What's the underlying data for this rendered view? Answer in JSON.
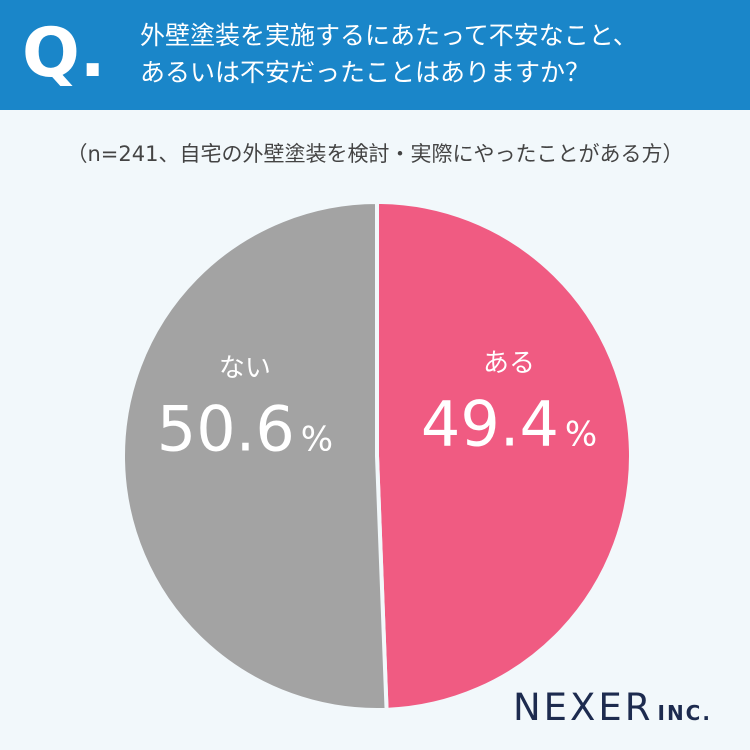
{
  "header": {
    "q_mark": "Q.",
    "question_line1": "外壁塗装を実施するにあたって不安なこと、",
    "question_line2": "あるいは不安だったことはありますか？"
  },
  "sample_note": "（n=241、自宅の外壁塗装を検討・実際にやったことがある方）",
  "chart_data": {
    "type": "pie",
    "slices": [
      {
        "label": "ある",
        "value": 49.4,
        "display": "49.4",
        "unit": "%",
        "color": "#f05b82"
      },
      {
        "label": "ない",
        "value": 50.6,
        "display": "50.6",
        "unit": "%",
        "color": "#a3a3a3"
      }
    ],
    "start": "12 o'clock",
    "direction": "clockwise",
    "background": "#f2f8fb"
  },
  "brand": {
    "name": "NEXER",
    "suffix": "INC."
  }
}
